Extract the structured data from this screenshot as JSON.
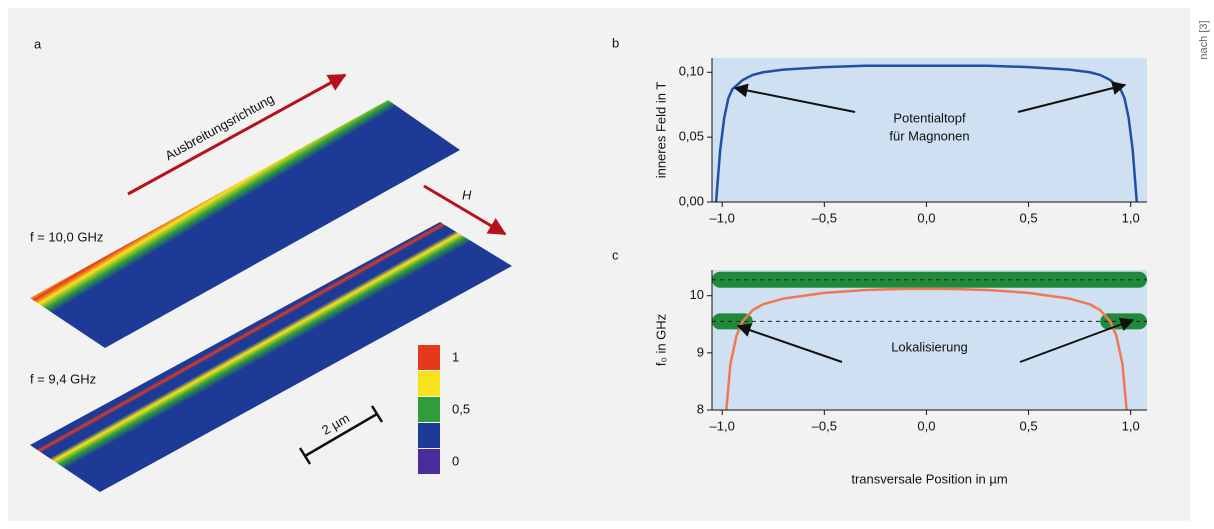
{
  "credit": "nach [3]",
  "panel_a": {
    "label": "a",
    "direction": "Ausbreitungsrichtung",
    "field": "H",
    "freq1": "f = 10,0 GHz",
    "freq2": "f = 9,4 GHz",
    "scale": "2 µm",
    "colorbar": {
      "ticks": [
        1,
        {
          "value": 0.5,
          "label": "0,5"
        },
        0
      ],
      "colors": [
        "#e5391c",
        "#f6e31c",
        "#2f9e3a",
        "#1d3b96",
        "#4a2d9c"
      ]
    }
  },
  "chart_data": [
    {
      "type": "line",
      "label": "b",
      "ylabel": "inneres Feld in T",
      "annotation": [
        "Potentialtopf",
        "für Magnonen"
      ],
      "x": [
        -1.03,
        -1.01,
        -0.99,
        -0.97,
        -0.95,
        -0.9,
        -0.85,
        -0.8,
        -0.7,
        -0.5,
        -0.3,
        0,
        0.3,
        0.5,
        0.7,
        0.8,
        0.85,
        0.9,
        0.95,
        0.97,
        0.99,
        1.01,
        1.03
      ],
      "series": [
        {
          "color": "#1f4fa8",
          "values": [
            0,
            0.04,
            0.065,
            0.08,
            0.087,
            0.094,
            0.098,
            0.1,
            0.102,
            0.104,
            0.105,
            0.105,
            0.105,
            0.104,
            0.102,
            0.1,
            0.098,
            0.094,
            0.087,
            0.08,
            0.065,
            0.04,
            0
          ]
        }
      ],
      "xlim": [
        -1.05,
        1.08
      ],
      "ylim": [
        0,
        0.111
      ],
      "xticks": [
        {
          "value": -1,
          "label": "–1,0"
        },
        {
          "value": -0.5,
          "label": "–0,5"
        },
        {
          "value": 0,
          "label": "0,0"
        },
        {
          "value": 0.5,
          "label": "0,5"
        },
        {
          "value": 1,
          "label": "1,0"
        }
      ],
      "yticks": [
        {
          "value": 0,
          "label": "0,00"
        },
        {
          "value": 0.05,
          "label": "0,05"
        },
        {
          "value": 0.1,
          "label": "0,10"
        }
      ],
      "background": "#cfe0f2"
    },
    {
      "type": "line",
      "label": "c",
      "ylabel": "f₀ in GHz",
      "xlabel": "transversale Position in µm",
      "annotation": [
        "Lokalisierung"
      ],
      "x": [
        -0.98,
        -0.96,
        -0.93,
        -0.9,
        -0.85,
        -0.8,
        -0.7,
        -0.6,
        -0.5,
        -0.3,
        -0.1,
        0,
        0.1,
        0.3,
        0.5,
        0.6,
        0.7,
        0.8,
        0.85,
        0.9,
        0.93,
        0.96,
        0.98
      ],
      "series": [
        {
          "color": "#f07850",
          "values": [
            8,
            8.8,
            9.3,
            9.55,
            9.75,
            9.85,
            9.95,
            10,
            10.05,
            10.1,
            10.12,
            10.12,
            10.12,
            10.1,
            10.05,
            10,
            9.95,
            9.85,
            9.75,
            9.55,
            9.3,
            8.8,
            8
          ]
        }
      ],
      "levels": [
        10.28,
        9.55
      ],
      "level_color": "#1e8a3a",
      "xlim": [
        -1.05,
        1.08
      ],
      "ylim": [
        8,
        10.45
      ],
      "xticks": [
        {
          "value": -1,
          "label": "–1,0"
        },
        {
          "value": -0.5,
          "label": "–0,5"
        },
        {
          "value": 0,
          "label": "0,0"
        },
        {
          "value": 0.5,
          "label": "0,5"
        },
        {
          "value": 1,
          "label": "1,0"
        }
      ],
      "yticks": [
        8,
        9,
        10
      ],
      "background": "#cfe0f2"
    }
  ]
}
